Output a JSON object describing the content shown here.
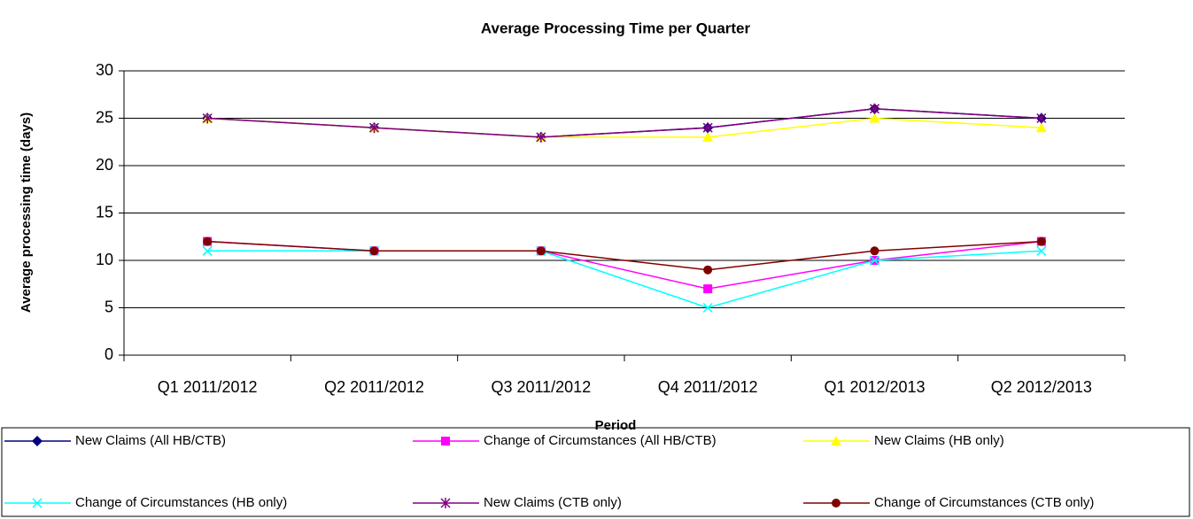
{
  "chart_data": {
    "type": "line",
    "title": "Average Processing Time per Quarter",
    "xlabel": "Period",
    "ylabel": "Average processing time (days)",
    "categories": [
      "Q1 2011/2012",
      "Q2 2011/2012",
      "Q3 2011/2012",
      "Q4 2011/2012",
      "Q1 2012/2013",
      "Q2 2012/2013"
    ],
    "ylim": [
      0,
      30
    ],
    "yticks": [
      0,
      5,
      10,
      15,
      20,
      25,
      30
    ],
    "grid": true,
    "series": [
      {
        "name": "New Claims (All HB/CTB)",
        "color": "#000080",
        "marker": "diamond",
        "values": [
          25,
          24,
          23,
          24,
          26,
          25
        ]
      },
      {
        "name": "Change of Circumstances (All HB/CTB)",
        "color": "#ff00ff",
        "marker": "square",
        "values": [
          12,
          11,
          11,
          7,
          10,
          12
        ]
      },
      {
        "name": "New Claims (HB only)",
        "color": "#ffff00",
        "marker": "triangle",
        "values": [
          25,
          24,
          23,
          23,
          25,
          24
        ]
      },
      {
        "name": "Change of Circumstances (HB only)",
        "color": "#00ffff",
        "marker": "x",
        "values": [
          11,
          11,
          11,
          5,
          10,
          11
        ]
      },
      {
        "name": "New Claims (CTB only)",
        "color": "#800080",
        "marker": "star",
        "values": [
          25,
          24,
          23,
          24,
          26,
          25
        ]
      },
      {
        "name": "Change of Circumstances (CTB only)",
        "color": "#800000",
        "marker": "circle",
        "values": [
          12,
          11,
          11,
          9,
          11,
          12
        ]
      }
    ]
  }
}
